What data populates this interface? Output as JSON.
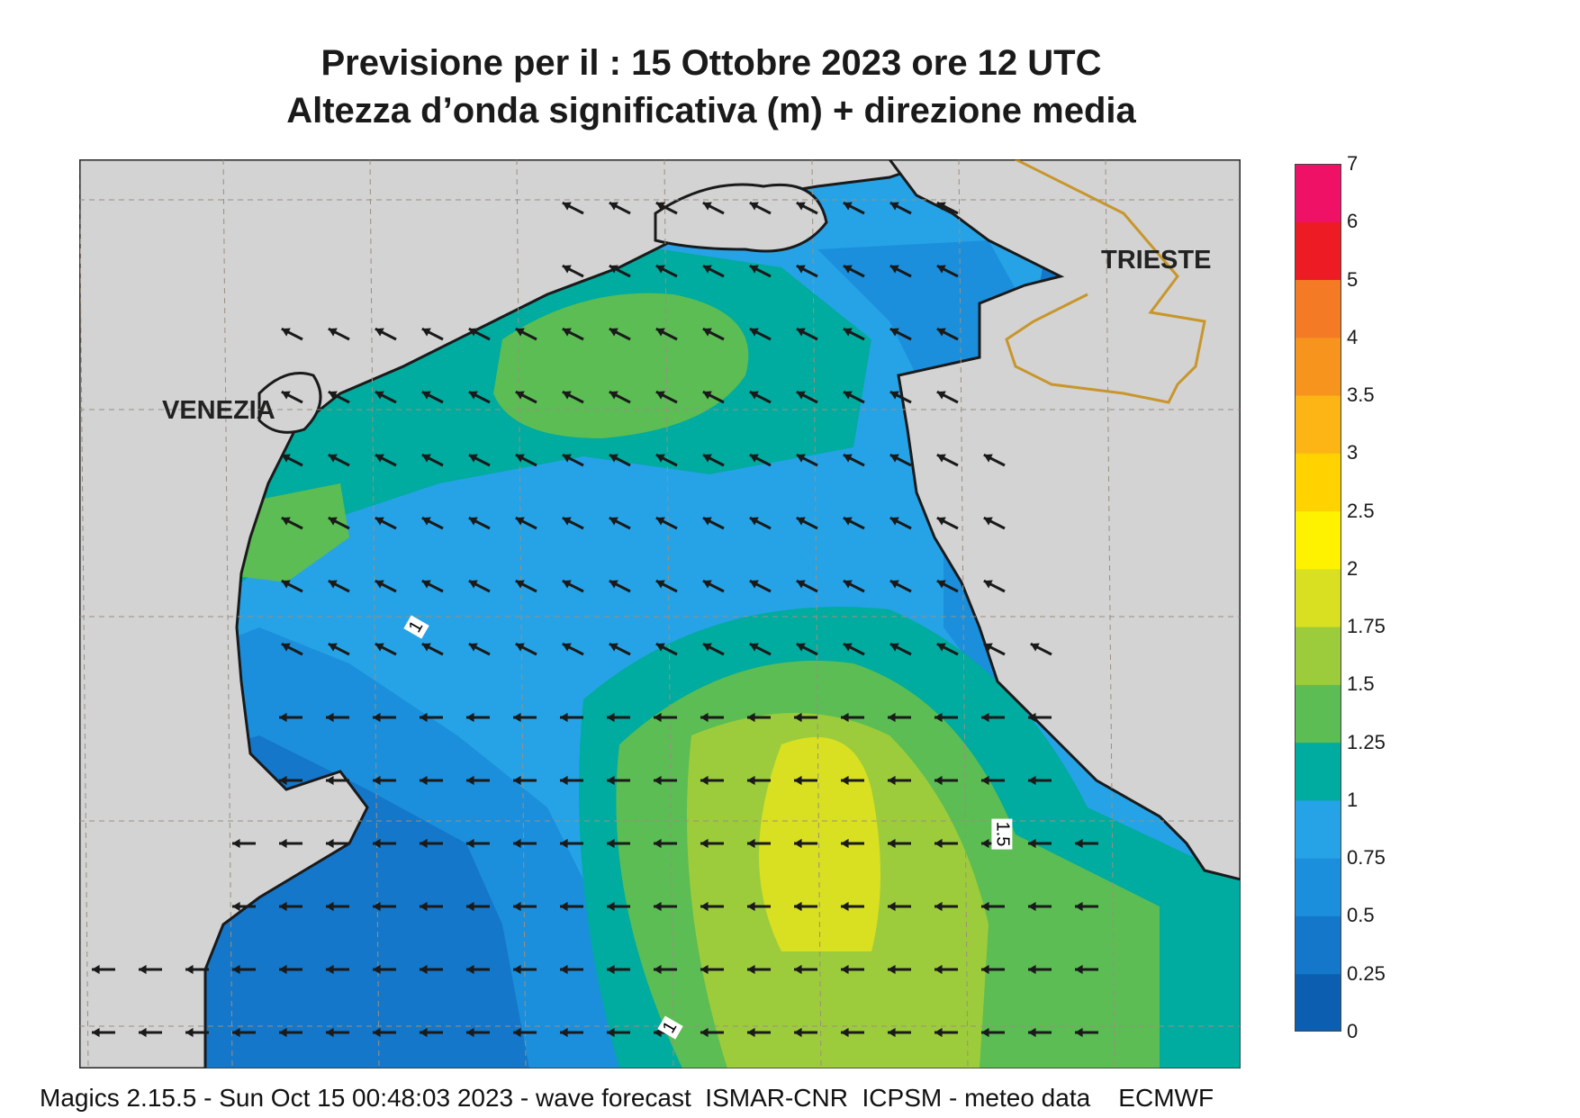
{
  "header": {
    "title_line1": "Previsione per il  :  15  Ottobre  2023   ore 12 UTC",
    "title_line2": "Altezza d’onda significativa (m) + direzione media"
  },
  "map": {
    "cities": [
      {
        "key": "venezia",
        "label": "VENEZIA"
      },
      {
        "key": "trieste",
        "label": "TRIESTE"
      }
    ],
    "contour_labels": [
      "1",
      "1.5",
      "1"
    ],
    "colors": {
      "land": "#d3d3d3",
      "coast": "#1a1a1a",
      "border": "#c8962c",
      "grid": "#9b8f80"
    }
  },
  "legend": {
    "levels": [
      "0",
      "0.25",
      "0.5",
      "0.75",
      "1",
      "1.25",
      "1.5",
      "1.75",
      "2",
      "2.5",
      "3",
      "3.5",
      "4",
      "5",
      "6",
      "7"
    ],
    "colors": [
      "#0c5fb0",
      "#1477c9",
      "#1b8fdc",
      "#26a3e6",
      "#00ab9f",
      "#5bbd53",
      "#9ccc3c",
      "#d8e021",
      "#fff200",
      "#ffd200",
      "#fdb515",
      "#f7941d",
      "#f47a25",
      "#ed1c24",
      "#ee1166"
    ]
  },
  "footer": {
    "text": "Magics 2.15.5 - Sun Oct 15 00:48:03 2023 - wave forecast  ISMAR-CNR  ICPSM - meteo data    ECMWF"
  }
}
